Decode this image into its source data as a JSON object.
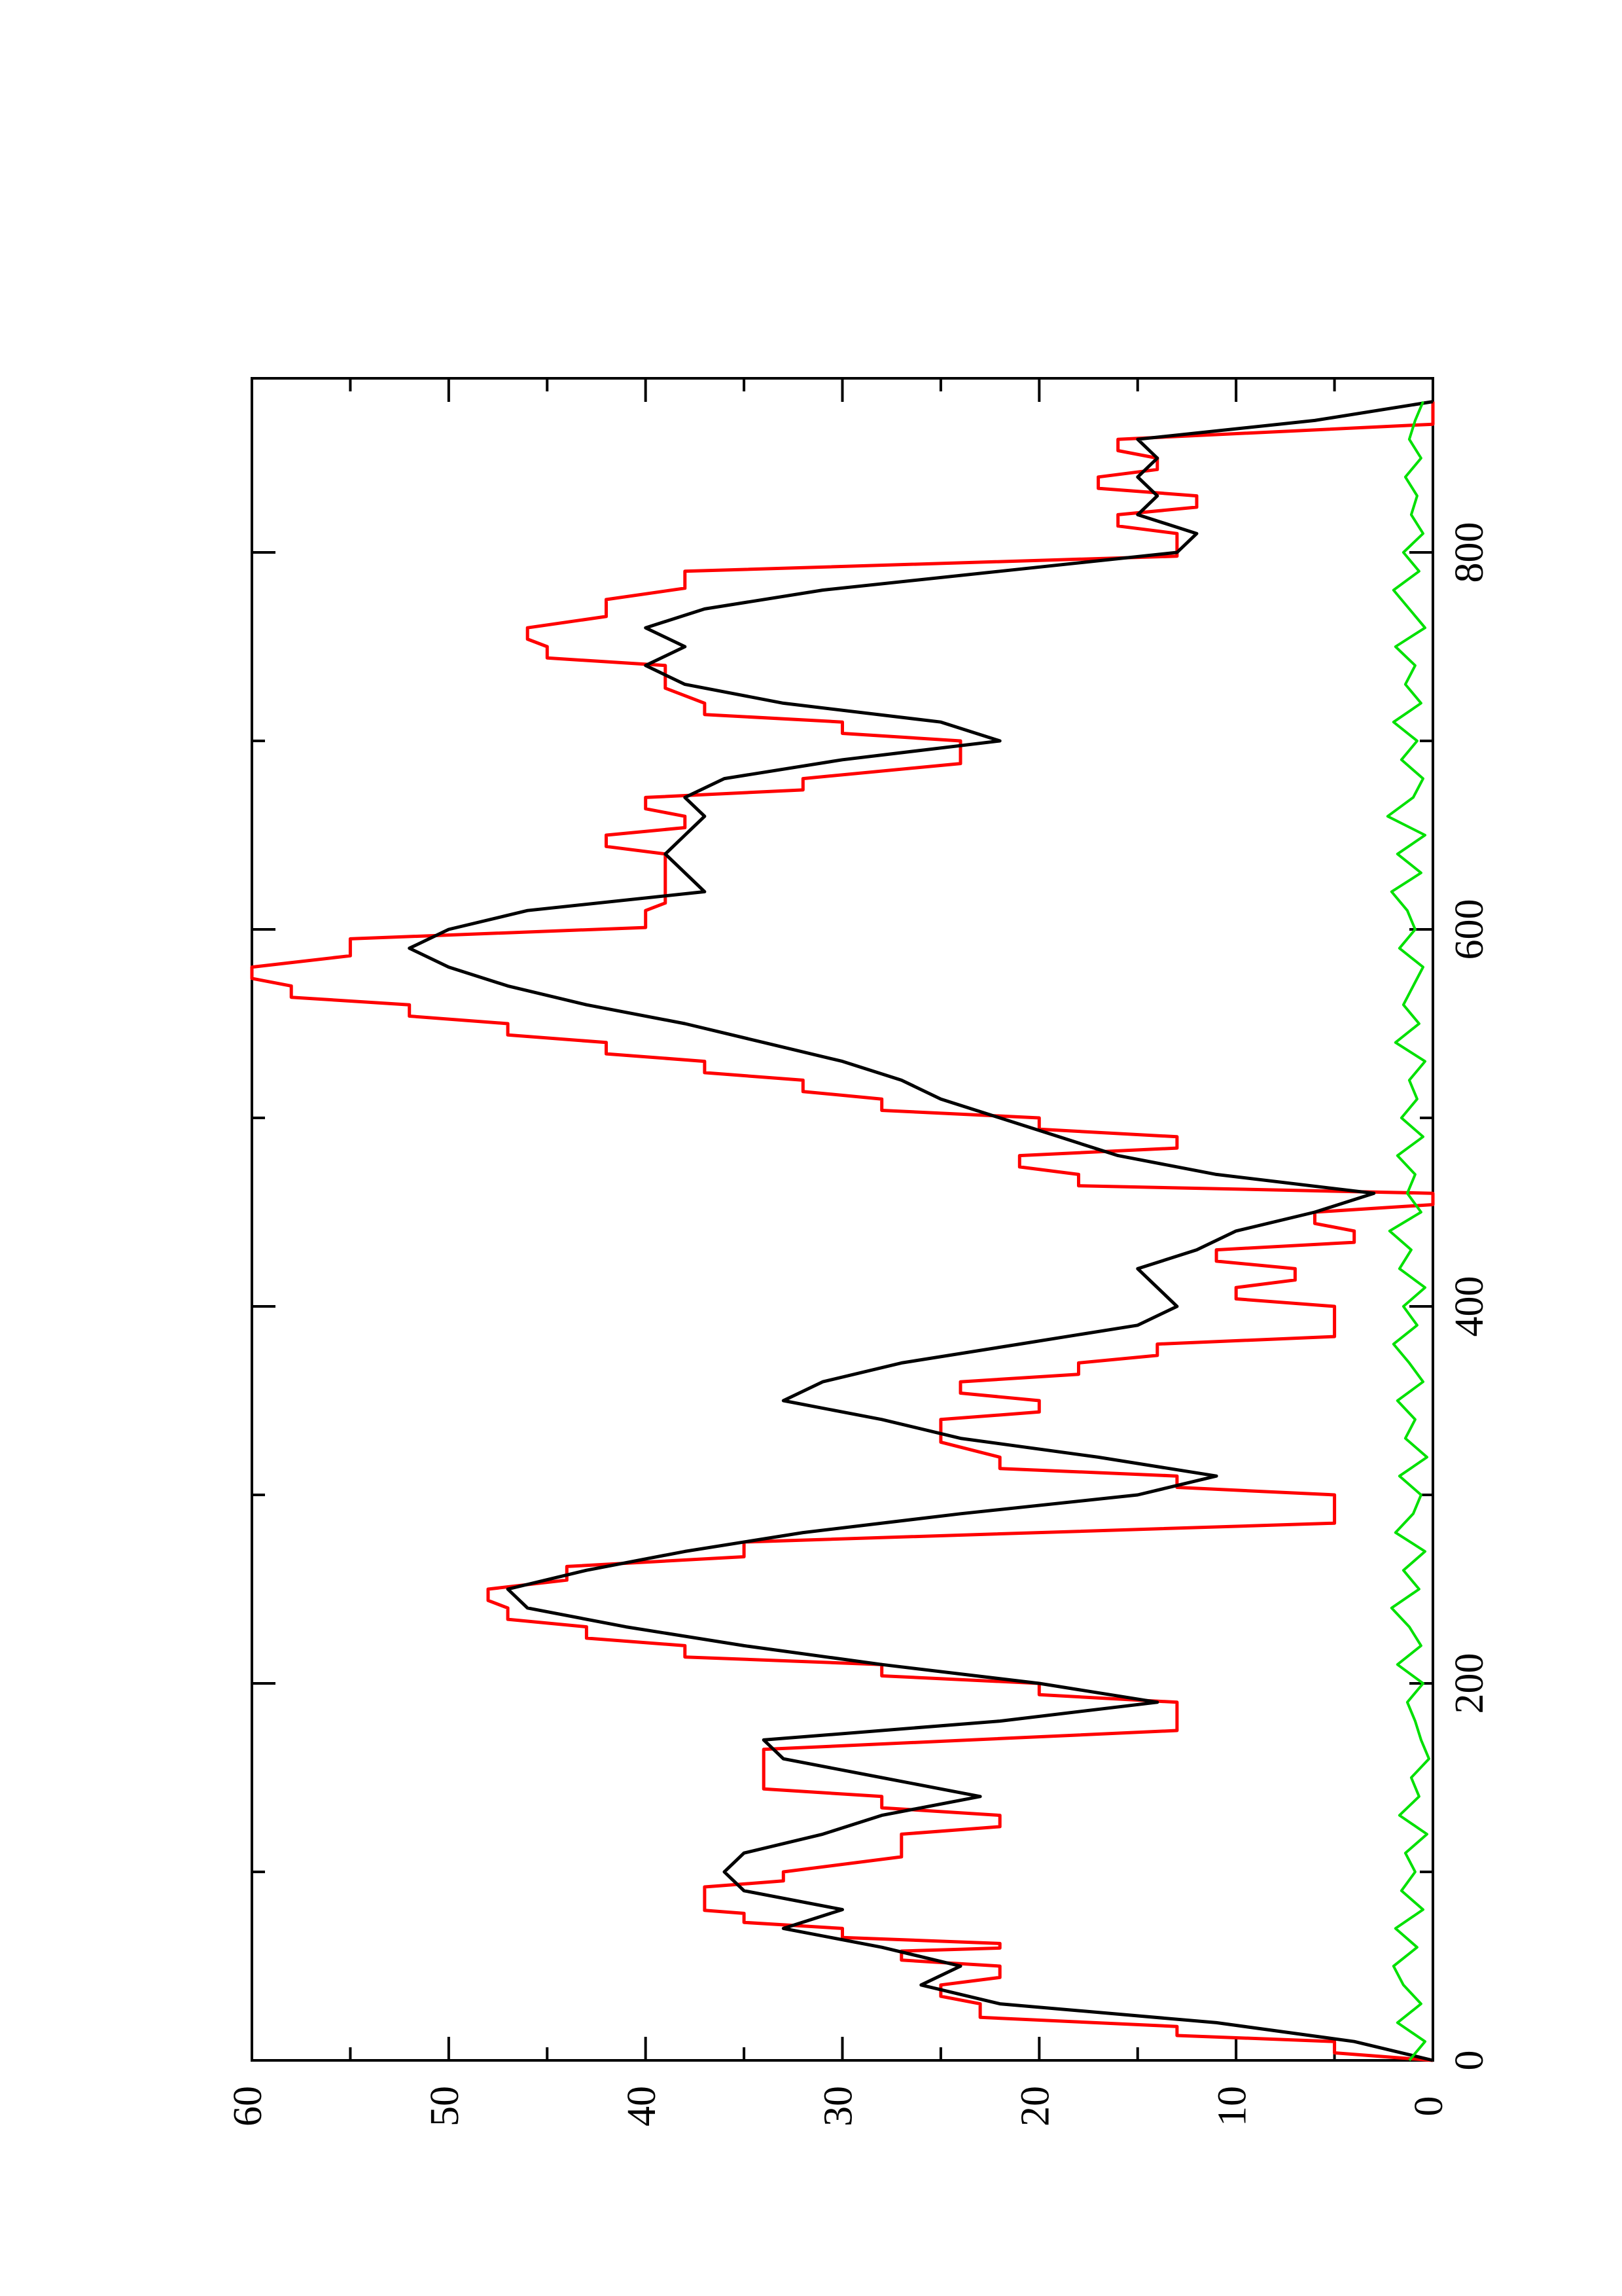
{
  "chart_data": {
    "type": "line",
    "orientation": "rotated 90 degrees counter-clockwise (x axis runs upward, y axis runs rightward)",
    "title": "",
    "xlabel": "",
    "ylabel": "",
    "xlim": [
      0,
      880
    ],
    "ylim": [
      0,
      60
    ],
    "x_ticks": [
      0,
      200,
      400,
      600,
      800
    ],
    "x_minor_ticks": [
      100,
      300,
      500,
      700
    ],
    "y_ticks": [
      0,
      10,
      20,
      30,
      40,
      50,
      60
    ],
    "y_minor_ticks": [
      5,
      15,
      25,
      35,
      45,
      55
    ],
    "grid": false,
    "legend": "none",
    "series": [
      {
        "color": "#ff0000",
        "style": "step",
        "x": [
          0,
          10,
          18,
          30,
          40,
          50,
          58,
          62,
          70,
          78,
          82,
          92,
          100,
          120,
          130,
          140,
          150,
          165,
          190,
          200,
          210,
          220,
          230,
          240,
          250,
          262,
          275,
          300,
          310,
          320,
          340,
          350,
          360,
          370,
          380,
          390,
          400,
          410,
          420,
          430,
          440,
          450,
          460,
          470,
          480,
          490,
          500,
          510,
          520,
          530,
          540,
          550,
          560,
          570,
          580,
          595,
          610,
          620,
          640,
          650,
          660,
          670,
          680,
          700,
          710,
          720,
          740,
          750,
          760,
          775,
          790,
          810,
          820,
          830,
          840,
          850,
          860,
          880
        ],
        "y": [
          0,
          5,
          13,
          23,
          25,
          22,
          27,
          22,
          30,
          35,
          37,
          37,
          33,
          27,
          22,
          28,
          34,
          34,
          13,
          20,
          28,
          38,
          43,
          47,
          48,
          44,
          35,
          5,
          13,
          22,
          25,
          20,
          24,
          18,
          14,
          5,
          5,
          10,
          7,
          11,
          4,
          6,
          0,
          18,
          21,
          13,
          20,
          28,
          32,
          37,
          42,
          47,
          52,
          58,
          60,
          55,
          40,
          39,
          39,
          42,
          38,
          40,
          32,
          24,
          30,
          37,
          39,
          45,
          46,
          42,
          38,
          13,
          16,
          12,
          17,
          14,
          16,
          0
        ]
      },
      {
        "color": "#000000",
        "style": "line",
        "x": [
          0,
          10,
          20,
          30,
          40,
          50,
          60,
          70,
          80,
          90,
          100,
          110,
          120,
          130,
          140,
          150,
          160,
          170,
          180,
          190,
          200,
          210,
          220,
          230,
          240,
          250,
          260,
          270,
          280,
          290,
          300,
          310,
          320,
          330,
          340,
          350,
          360,
          370,
          380,
          390,
          400,
          410,
          420,
          430,
          440,
          450,
          460,
          470,
          480,
          490,
          500,
          510,
          520,
          530,
          540,
          550,
          560,
          570,
          580,
          590,
          600,
          610,
          620,
          630,
          640,
          650,
          660,
          670,
          680,
          690,
          700,
          710,
          720,
          730,
          740,
          750,
          760,
          770,
          780,
          790,
          800,
          810,
          820,
          830,
          840,
          850,
          860,
          870,
          880
        ],
        "y": [
          0,
          4,
          11,
          22,
          26,
          24,
          28,
          33,
          30,
          35,
          36,
          35,
          31,
          28,
          23,
          28,
          33,
          34,
          22,
          14,
          20,
          28,
          35,
          41,
          46,
          47,
          43,
          38,
          32,
          24,
          15,
          11,
          17,
          24,
          28,
          33,
          31,
          27,
          21,
          15,
          13,
          14,
          15,
          12,
          10,
          6,
          3,
          11,
          16,
          19,
          22,
          25,
          27,
          30,
          34,
          38,
          43,
          47,
          50,
          52,
          50,
          46,
          37,
          38,
          39,
          38,
          37,
          38,
          36,
          30,
          22,
          25,
          33,
          38,
          40,
          38,
          40,
          37,
          31,
          22,
          13,
          12,
          15,
          14,
          15,
          14,
          15,
          6,
          0
        ]
      },
      {
        "color": "#00e000",
        "style": "noise",
        "x": [
          0,
          10,
          20,
          30,
          40,
          50,
          60,
          70,
          80,
          90,
          100,
          110,
          120,
          130,
          140,
          150,
          160,
          170,
          180,
          190,
          200,
          210,
          220,
          230,
          240,
          250,
          260,
          270,
          280,
          290,
          300,
          310,
          320,
          330,
          340,
          350,
          360,
          370,
          380,
          390,
          400,
          410,
          420,
          430,
          440,
          450,
          460,
          470,
          480,
          490,
          500,
          510,
          520,
          530,
          540,
          550,
          560,
          570,
          580,
          590,
          600,
          610,
          620,
          630,
          640,
          650,
          660,
          670,
          680,
          690,
          700,
          710,
          720,
          730,
          740,
          750,
          760,
          770,
          780,
          790,
          800,
          810,
          820,
          830,
          840,
          850,
          860,
          870,
          880
        ],
        "y": [
          1.2,
          0.4,
          1.8,
          0.6,
          1.5,
          2.0,
          0.8,
          1.9,
          0.5,
          1.6,
          0.9,
          1.4,
          0.3,
          1.7,
          0.7,
          1.1,
          0.2,
          0.6,
          0.9,
          1.3,
          0.5,
          1.8,
          0.6,
          1.2,
          2.1,
          0.7,
          1.5,
          0.4,
          1.9,
          1.0,
          0.6,
          1.7,
          0.3,
          1.4,
          0.9,
          1.8,
          0.5,
          1.2,
          2.0,
          0.8,
          1.5,
          0.4,
          1.7,
          1.1,
          2.2,
          0.6,
          1.3,
          0.9,
          1.8,
          0.5,
          1.6,
          0.8,
          1.2,
          0.4,
          1.9,
          0.7,
          1.5,
          1.0,
          0.5,
          1.7,
          0.9,
          1.3,
          2.1,
          0.6,
          1.8,
          0.4,
          2.3,
          1.0,
          0.5,
          1.6,
          0.8,
          2.0,
          0.6,
          1.4,
          0.9,
          1.9,
          0.4,
          1.2,
          2.0,
          0.7,
          1.5,
          0.5,
          1.1,
          0.8,
          1.4,
          0.6,
          1.2,
          0.9,
          0.5
        ]
      }
    ]
  }
}
